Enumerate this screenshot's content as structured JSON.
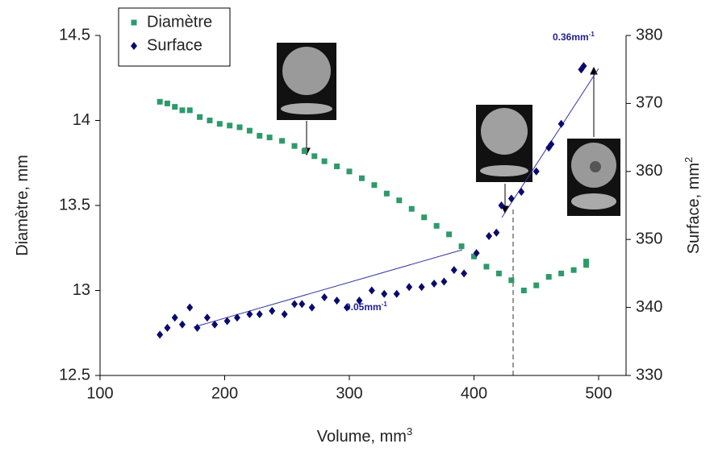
{
  "chart_data": {
    "type": "scatter",
    "x_label": {
      "text": "Volume, mm",
      "sup": "3"
    },
    "y_label": "Diamètre, mm",
    "y2_label": {
      "text": "Surface, mm",
      "sup": "2"
    },
    "xlim": [
      100,
      522
    ],
    "xticks": [
      100,
      200,
      300,
      400,
      500
    ],
    "ylim": [
      12.5,
      14.5
    ],
    "yticks": [
      12.5,
      13,
      13.5,
      14,
      14.5
    ],
    "y2lim": [
      330,
      380
    ],
    "y2ticks": [
      330,
      340,
      350,
      360,
      370,
      380
    ],
    "annotations": [
      {
        "text": "0.05mm",
        "sup": "-1"
      },
      {
        "text": "0.36mm",
        "sup": "-1"
      }
    ],
    "legend": "top-left",
    "series": [
      {
        "name": "Diamètre",
        "color": "#2e9a6a",
        "marker": "square",
        "x": [
          148,
          154,
          160,
          166,
          172,
          180,
          188,
          196,
          204,
          212,
          220,
          228,
          236,
          246,
          256,
          264,
          272,
          280,
          290,
          300,
          310,
          320,
          330,
          340,
          350,
          360,
          370,
          380,
          390,
          400,
          410,
          420,
          430,
          440,
          450,
          460,
          470,
          480,
          490,
          490
        ],
        "values": [
          14.11,
          14.1,
          14.08,
          14.06,
          14.06,
          14.02,
          14.0,
          13.98,
          13.97,
          13.96,
          13.94,
          13.91,
          13.9,
          13.88,
          13.85,
          13.82,
          13.79,
          13.76,
          13.73,
          13.7,
          13.66,
          13.62,
          13.57,
          13.53,
          13.48,
          13.43,
          13.38,
          13.33,
          13.26,
          13.2,
          13.14,
          13.1,
          13.06,
          13.0,
          13.03,
          13.08,
          13.1,
          13.12,
          13.15,
          13.17
        ]
      },
      {
        "name": "Surface",
        "color": "#0a0a6e",
        "marker": "diamond",
        "axis": "y2",
        "x": [
          148,
          154,
          160,
          166,
          172,
          178,
          186,
          192,
          202,
          210,
          220,
          228,
          238,
          248,
          256,
          262,
          270,
          280,
          290,
          298,
          308,
          318,
          328,
          338,
          348,
          358,
          368,
          376,
          384,
          392,
          402,
          412,
          418,
          422,
          430,
          438,
          450,
          460,
          462,
          470,
          486,
          488
        ],
        "values": [
          336,
          337,
          338.5,
          337.5,
          340,
          337,
          338.5,
          337.5,
          338,
          338.5,
          339,
          339,
          339.5,
          339,
          340.5,
          340.5,
          340,
          341.5,
          341,
          340,
          341,
          342.5,
          342,
          342,
          343,
          343,
          343.5,
          343.8,
          345.5,
          345,
          348,
          350.5,
          351,
          355,
          356,
          357,
          360,
          363.5,
          364,
          367,
          375,
          375.5
        ]
      }
    ]
  }
}
